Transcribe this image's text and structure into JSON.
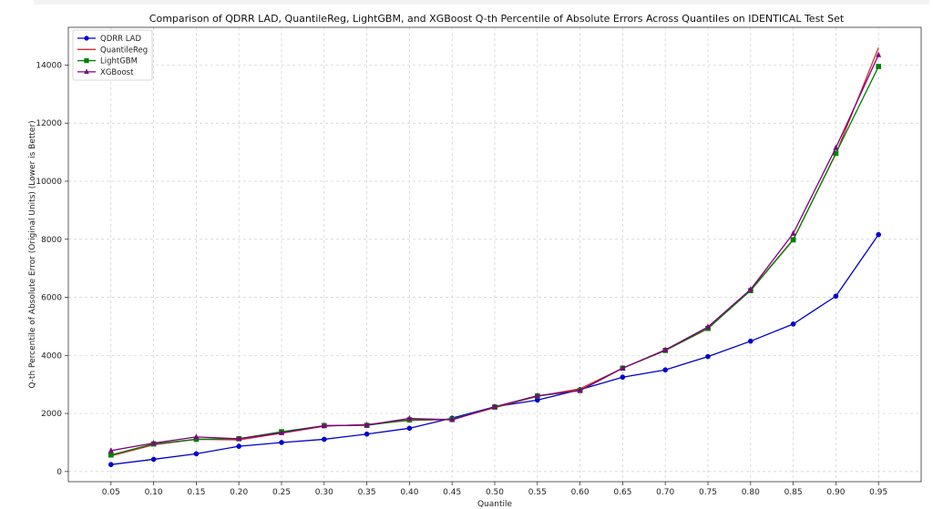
{
  "chart_data": {
    "type": "line",
    "title": "Comparison of QDRR LAD, QuantileReg, LightGBM, and XGBoost Q-th Percentile of Absolute Errors Across Quantiles on IDENTICAL Test Set",
    "xlabel": "Quantile",
    "ylabel": "Q-th Percentile of Absolute Error (Original Units) (Lower is Better)",
    "x": [
      0.05,
      0.1,
      0.15,
      0.2,
      0.25,
      0.3,
      0.35,
      0.4,
      0.45,
      0.5,
      0.55,
      0.6,
      0.65,
      0.7,
      0.75,
      0.8,
      0.85,
      0.9,
      0.95
    ],
    "x_tick_labels": [
      "0.05",
      "0.10",
      "0.15",
      "0.20",
      "0.25",
      "0.30",
      "0.35",
      "0.40",
      "0.45",
      "0.50",
      "0.55",
      "0.60",
      "0.65",
      "0.70",
      "0.75",
      "0.80",
      "0.85",
      "0.90",
      "0.95"
    ],
    "xlim": [
      0.0,
      1.0
    ],
    "ylim": [
      -350,
      15300
    ],
    "y_ticks": [
      0,
      2000,
      4000,
      6000,
      8000,
      10000,
      12000,
      14000
    ],
    "grid": true,
    "legend_position": "top-left",
    "series": [
      {
        "name": "QDRR LAD",
        "color": "#0000cc",
        "marker": "circle",
        "values": [
          240,
          420,
          610,
          870,
          1000,
          1110,
          1290,
          1490,
          1840,
          2230,
          2460,
          2820,
          3250,
          3500,
          3960,
          4490,
          5080,
          6040,
          8160
        ]
      },
      {
        "name": "QuantileReg",
        "color": "#d62728",
        "marker": "none",
        "values": [
          540,
          920,
          1110,
          1090,
          1320,
          1560,
          1620,
          1760,
          1790,
          2200,
          2590,
          2850,
          3560,
          4170,
          4920,
          6250,
          7990,
          10940,
          14600
        ]
      },
      {
        "name": "LightGBM",
        "color": "#008000",
        "marker": "square",
        "values": [
          570,
          950,
          1110,
          1130,
          1370,
          1580,
          1590,
          1780,
          1800,
          2220,
          2600,
          2790,
          3560,
          4170,
          4930,
          6230,
          7980,
          10960,
          13950
        ]
      },
      {
        "name": "XGBoost",
        "color": "#800080",
        "marker": "triangle",
        "values": [
          720,
          980,
          1190,
          1130,
          1330,
          1580,
          1600,
          1830,
          1780,
          2230,
          2610,
          2790,
          3560,
          4190,
          4980,
          6270,
          8200,
          11150,
          14350
        ]
      }
    ]
  }
}
